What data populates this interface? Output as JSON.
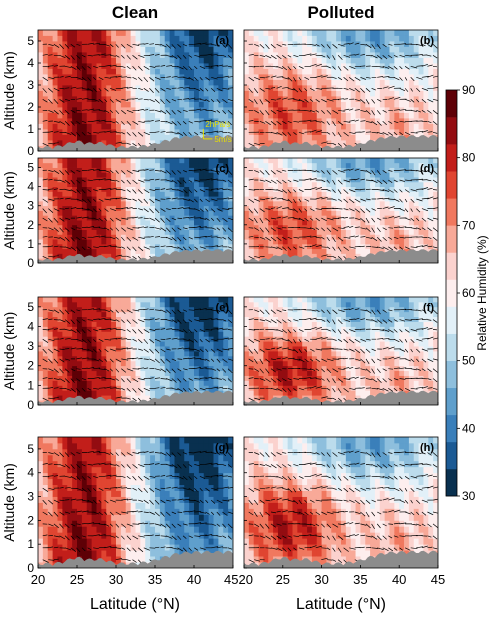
{
  "figure": {
    "column_titles": [
      "Clean",
      "Polluted"
    ],
    "ylabel": "Altitude (km)",
    "xlabel": "Latitude (°N)",
    "colorbar_label": "Relative Humidity (%)",
    "vector_keys": {
      "vertical": "2hPa/s",
      "horizontal": "5m/s"
    },
    "colors": {
      "rh_scale": [
        "#09304f",
        "#1b5a94",
        "#3a7fba",
        "#5f9fcc",
        "#8ebfdd",
        "#bcdcec",
        "#e2f0f8",
        "#fdeeee",
        "#fbd2ce",
        "#f8a998",
        "#f0785f",
        "#e04531",
        "#c21e1a",
        "#930c11",
        "#5e0006"
      ],
      "terrain": "#8c8c8c",
      "vectors": "#000000",
      "key_text": "#e8e000"
    }
  },
  "chart_data": {
    "type": "heatmap",
    "xlim": [
      20,
      45
    ],
    "ylim": [
      0,
      5.5
    ],
    "x_ticks": [
      20,
      25,
      30,
      35,
      40,
      45
    ],
    "x_tick_labels_left": [
      "20",
      "25",
      "30",
      "35",
      "40",
      "45"
    ],
    "x_tick_labels_right": [
      "",
      "25",
      "30",
      "35",
      "40",
      "45"
    ],
    "x_label_shared": "4520",
    "y_ticks": [
      0,
      1,
      2,
      3,
      4,
      5
    ],
    "colorbar": {
      "range": [
        30,
        90
      ],
      "ticks": [
        30,
        40,
        50,
        60,
        70,
        80,
        90
      ]
    },
    "panels": [
      {
        "label": "(a)",
        "column": "Clean",
        "row": 1
      },
      {
        "label": "(b)",
        "column": "Polluted",
        "row": 1
      },
      {
        "label": "(c)",
        "column": "Clean",
        "row": 2
      },
      {
        "label": "(d)",
        "column": "Polluted",
        "row": 2
      },
      {
        "label": "(e)",
        "column": "Clean",
        "row": 3
      },
      {
        "label": "(f)",
        "column": "Polluted",
        "row": 3
      },
      {
        "label": "(g)",
        "column": "Clean",
        "row": 4
      },
      {
        "label": "(h)",
        "column": "Polluted",
        "row": 4
      }
    ]
  }
}
